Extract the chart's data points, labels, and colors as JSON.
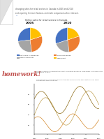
{
  "page_title_line1": "changing sales for retail sectors in Canada in 2005 and 2010",
  "page_text1": "and reporting the main features, and make comparisons where relevant.",
  "bullet": "•",
  "chart_title": "Online sales for retail sectors in Canada",
  "year1": "2005",
  "year2": "2010",
  "slices_2005": [
    0.27,
    0.25,
    0.28,
    0.2
  ],
  "slices_2010": [
    0.3,
    0.22,
    0.28,
    0.2
  ],
  "colors_2005": [
    "#4472c4",
    "#a5a5a5",
    "#ed7d31",
    "#ffc000"
  ],
  "colors_2010": [
    "#4472c4",
    "#a5a5a5",
    "#ed7d31",
    "#ffc000"
  ],
  "legend_labels": [
    "Electronics & Appliances",
    "Food & Beverage",
    "Home Furnishings",
    "Other/Sport"
  ],
  "legend_colors": [
    "#4472c4",
    "#ed7d31",
    "#a5a5a5",
    "#ffc000"
  ],
  "startangle_2005": 90,
  "startangle_2010": 90,
  "bg_color": "#ffffff",
  "homework_text": "homework!",
  "homework_color": "#c0504d",
  "body_text2": "Find the appropriate information about population growth of three major Australian cities from 2004 to 2014.",
  "body_text3": "Summarise the information by selecting and describing the main features and make comparisons where relevant.",
  "line_color": "#c0a050",
  "line_color2": "#8b6914"
}
